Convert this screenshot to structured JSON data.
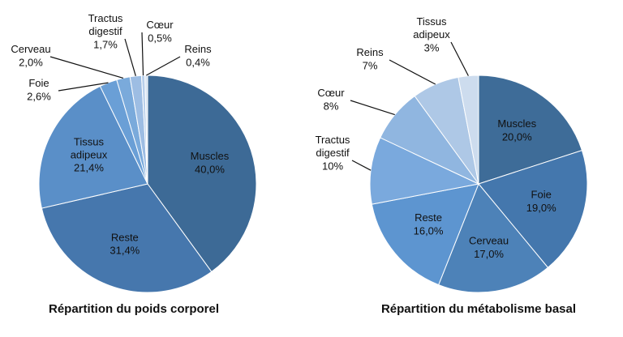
{
  "chart_data": [
    {
      "type": "pie",
      "title": "Répartition du poids corporel",
      "categories": [
        "Muscles",
        "Reste",
        "Tissus adipeux",
        "Foie",
        "Cerveau",
        "Tractus digestif",
        "Cœur",
        "Reins"
      ],
      "values": [
        40.0,
        31.4,
        21.4,
        2.6,
        2.0,
        1.7,
        0.5,
        0.4
      ],
      "value_labels": [
        "40,0%",
        "31,4%",
        "21,4%",
        "2,6%",
        "2,0%",
        "1,7%",
        "0,5%",
        "0,4%"
      ],
      "colors": [
        "#3d6a96",
        "#4677ad",
        "#5a8fc8",
        "#6a9fd6",
        "#7aaadb",
        "#9dbde3",
        "#b8cfea",
        "#d6e3f2"
      ]
    },
    {
      "type": "pie",
      "title": "Répartition du métabolisme basal",
      "categories": [
        "Muscles",
        "Foie",
        "Cerveau",
        "Reste",
        "Tractus digestif",
        "Cœur",
        "Reins",
        "Tissus adipeux"
      ],
      "values": [
        20.0,
        19.0,
        17.0,
        16.0,
        10,
        8,
        7,
        3
      ],
      "value_labels": [
        "20,0%",
        "19,0%",
        "17,0%",
        "16,0%",
        "10%",
        "8%",
        "7%",
        "3%"
      ],
      "colors": [
        "#3e6c98",
        "#4477ad",
        "#4d82b8",
        "#5d95d0",
        "#7aa9dd",
        "#90b6e0",
        "#aec8e6",
        "#cddcee"
      ]
    }
  ]
}
